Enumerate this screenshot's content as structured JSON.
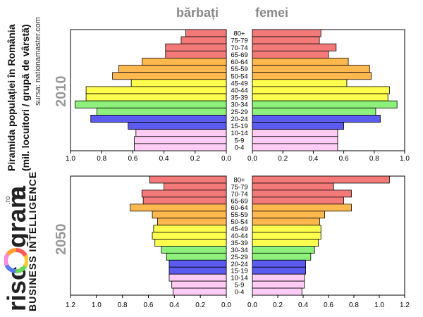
{
  "left_panel": {
    "title_line1": "Piramida populației în România",
    "title_line2": "(mil. locuitori / grupă de vârstă)",
    "source": "sursa: nationamaster.com",
    "brand": {
      "parts": [
        "risc",
        "gram",
        "a"
      ],
      "suffix": ".ro"
    },
    "business_text": "BUSINESS INTELLIGENCE"
  },
  "header": {
    "men_label": "bărbați",
    "women_label": "femei"
  },
  "colors": {
    "80+": "#f47a7a",
    "75-79": "#f47a7a",
    "70-74": "#f47a7a",
    "65-69": "#f47a7a",
    "60-64": "#ffb84d",
    "55-59": "#ffb84d",
    "50-54": "#ffb84d",
    "45-49": "#ffff4d",
    "40-44": "#ffff4d",
    "35-39": "#ffff4d",
    "30-34": "#8cf07a",
    "25-29": "#8cf07a",
    "20-24": "#5b5bf0",
    "15-19": "#5b5bf0",
    "10-14": "#ffccf5",
    "5-9": "#ffccf5",
    "0-4": "#ffccf5"
  },
  "chart_data": [
    {
      "type": "bar",
      "title": "2010",
      "categories": [
        "80+",
        "75-79",
        "70-74",
        "65-69",
        "60-64",
        "55-59",
        "50-54",
        "45-49",
        "40-44",
        "35-39",
        "30-34",
        "25-29",
        "20-24",
        "15-19",
        "10-14",
        "5-9",
        "0-4"
      ],
      "series": [
        {
          "name": "bărbați",
          "values": [
            0.26,
            0.29,
            0.39,
            0.39,
            0.54,
            0.69,
            0.73,
            0.61,
            0.9,
            0.9,
            0.97,
            0.83,
            0.87,
            0.63,
            0.58,
            0.59,
            0.59
          ]
        },
        {
          "name": "femei",
          "values": [
            0.45,
            0.44,
            0.55,
            0.5,
            0.63,
            0.77,
            0.78,
            0.62,
            0.9,
            0.89,
            0.95,
            0.81,
            0.84,
            0.6,
            0.56,
            0.56,
            0.56
          ]
        }
      ],
      "xlim": [
        0,
        1.0
      ],
      "xticks": [
        "1.0",
        "0.8",
        "0.6",
        "0.4",
        "0.2",
        "0.0"
      ],
      "xticks_right": [
        "0.0",
        "0.2",
        "0.4",
        "0.6",
        "0.8",
        "1.0"
      ]
    },
    {
      "type": "bar",
      "title": "2050",
      "categories": [
        "80+",
        "75-79",
        "70-74",
        "65-69",
        "60-64",
        "55-59",
        "50-54",
        "45-49",
        "40-44",
        "35-39",
        "30-34",
        "25-29",
        "20-24",
        "15-19",
        "10-14",
        "5-9",
        "0-4"
      ],
      "series": [
        {
          "name": "bărbați",
          "values": [
            0.59,
            0.48,
            0.65,
            0.64,
            0.74,
            0.57,
            0.53,
            0.56,
            0.57,
            0.55,
            0.5,
            0.46,
            0.44,
            0.44,
            0.44,
            0.42,
            0.41
          ]
        },
        {
          "name": "femei",
          "values": [
            1.08,
            0.64,
            0.78,
            0.72,
            0.78,
            0.57,
            0.53,
            0.54,
            0.54,
            0.52,
            0.49,
            0.46,
            0.42,
            0.42,
            0.41,
            0.41,
            0.39
          ]
        }
      ],
      "xlim": [
        0,
        1.2
      ],
      "xticks": [
        "1.2",
        "1.0",
        "0.8",
        "0.6",
        "0.4",
        "0.2",
        "0.0"
      ],
      "xticks_right": [
        "0.0",
        "0.2",
        "0.4",
        "0.6",
        "0.8",
        "1.0",
        "1.2"
      ]
    }
  ]
}
